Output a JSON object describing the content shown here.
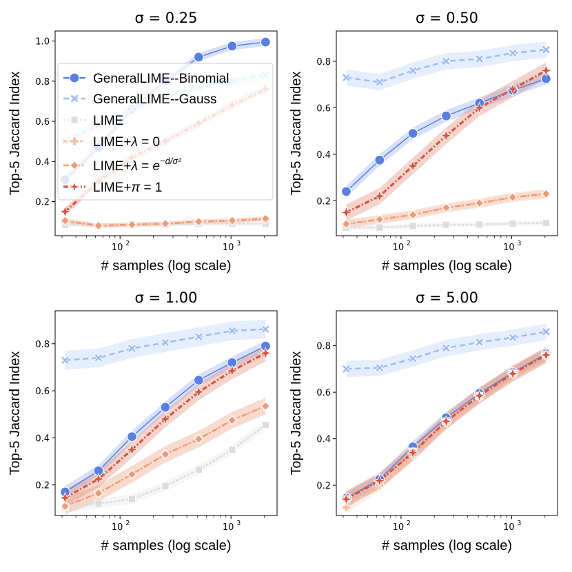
{
  "chart_data": [
    {
      "type": "line",
      "title": "σ = 0.25",
      "xlabel": "# samples (log scale)",
      "ylabel": "Top-5 Jaccard Index",
      "xscale": "log",
      "xlim": [
        26,
        2600
      ],
      "ylim": [
        0.03,
        1.05
      ],
      "yticks": [
        0.2,
        0.4,
        0.6,
        0.8,
        1.0
      ],
      "yticklabels": [
        "0.2",
        "0.4",
        "0.6",
        "0.8",
        "1.0"
      ],
      "xticklabels": [
        "10",
        "2",
        "10",
        "3"
      ],
      "x": [
        32,
        64,
        128,
        256,
        512,
        1024,
        2048
      ],
      "legend": "center-left",
      "series": [
        {
          "name": "GeneralLIME--Binomial",
          "values": [
            0.31,
            0.47,
            0.66,
            0.8,
            0.92,
            0.975,
            0.995
          ],
          "band": 0.02
        },
        {
          "name": "GeneralLIME--Gauss",
          "values": [
            0.5,
            0.58,
            0.66,
            0.72,
            0.77,
            0.8,
            0.83
          ],
          "band": 0.02
        },
        {
          "name": "LIME",
          "values": [
            0.085,
            0.08,
            0.085,
            0.085,
            0.09,
            0.09,
            0.09
          ],
          "band": 0.01
        },
        {
          "name": "LIME+λ = 0",
          "values": [
            0.1,
            0.08,
            0.085,
            0.09,
            0.1,
            0.105,
            0.11
          ],
          "band": 0.01
        },
        {
          "name": "LIME+λ = e^{-d/σ²}",
          "values": [
            0.105,
            0.08,
            0.085,
            0.09,
            0.1,
            0.105,
            0.115
          ],
          "band": 0.012
        },
        {
          "name": "LIME+π = 1",
          "values": [
            0.15,
            0.3,
            0.42,
            0.5,
            0.59,
            0.68,
            0.76
          ],
          "band": 0.02
        }
      ]
    },
    {
      "type": "line",
      "title": "σ = 0.50",
      "xlabel": "# samples (log scale)",
      "ylabel": "Top-5 Jaccard Index",
      "xscale": "log",
      "xlim": [
        26,
        2600
      ],
      "ylim": [
        0.05,
        0.93
      ],
      "yticks": [
        0.2,
        0.4,
        0.6,
        0.8
      ],
      "yticklabels": [
        "0.2",
        "0.4",
        "0.6",
        "0.8"
      ],
      "xticklabels": [
        "10",
        "2",
        "10",
        "3"
      ],
      "x": [
        32,
        64,
        128,
        256,
        512,
        1024,
        2048
      ],
      "series": [
        {
          "name": "GeneralLIME--Binomial",
          "values": [
            0.24,
            0.375,
            0.49,
            0.565,
            0.62,
            0.675,
            0.725
          ],
          "band": 0.025
        },
        {
          "name": "GeneralLIME--Gauss",
          "values": [
            0.73,
            0.71,
            0.76,
            0.8,
            0.81,
            0.835,
            0.85
          ],
          "band": 0.035
        },
        {
          "name": "LIME",
          "values": [
            0.085,
            0.085,
            0.092,
            0.097,
            0.098,
            0.102,
            0.105
          ],
          "band": 0.01
        },
        {
          "name": "LIME+λ = 0",
          "values": [
            0.1,
            0.12,
            0.14,
            0.17,
            0.19,
            0.215,
            0.23
          ],
          "band": 0.015
        },
        {
          "name": "LIME+λ = e^{-d/σ²}",
          "values": [
            0.1,
            0.12,
            0.14,
            0.17,
            0.19,
            0.215,
            0.23
          ],
          "band": 0.02
        },
        {
          "name": "LIME+π = 1",
          "values": [
            0.15,
            0.22,
            0.35,
            0.48,
            0.6,
            0.68,
            0.76
          ],
          "band": 0.035
        }
      ]
    },
    {
      "type": "line",
      "title": "σ = 1.00",
      "xlabel": "# samples (log scale)",
      "ylabel": "Top-5 Jaccard Index",
      "xscale": "log",
      "xlim": [
        26,
        2600
      ],
      "ylim": [
        0.07,
        0.94
      ],
      "yticks": [
        0.2,
        0.4,
        0.6,
        0.8
      ],
      "yticklabels": [
        "0.2",
        "0.4",
        "0.6",
        "0.8"
      ],
      "xticklabels": [
        "10",
        "2",
        "10",
        "3"
      ],
      "x": [
        32,
        64,
        128,
        256,
        512,
        1024,
        2048
      ],
      "series": [
        {
          "name": "GeneralLIME--Binomial",
          "values": [
            0.17,
            0.26,
            0.405,
            0.53,
            0.645,
            0.72,
            0.79
          ],
          "band": 0.025
        },
        {
          "name": "GeneralLIME--Gauss",
          "values": [
            0.73,
            0.74,
            0.78,
            0.805,
            0.83,
            0.855,
            0.862
          ],
          "band": 0.04
        },
        {
          "name": "LIME",
          "values": [
            0.105,
            0.12,
            0.14,
            0.195,
            0.265,
            0.35,
            0.455
          ],
          "band": 0.02
        },
        {
          "name": "LIME+λ = 0",
          "values": [
            0.11,
            0.165,
            0.245,
            0.33,
            0.395,
            0.475,
            0.535
          ],
          "band": 0.035
        },
        {
          "name": "LIME+λ = e^{-d/σ²}",
          "values": [
            0.11,
            0.165,
            0.245,
            0.33,
            0.395,
            0.475,
            0.535
          ],
          "band": 0.035
        },
        {
          "name": "LIME+π = 1",
          "values": [
            0.145,
            0.225,
            0.35,
            0.48,
            0.595,
            0.685,
            0.76
          ],
          "band": 0.035
        }
      ]
    },
    {
      "type": "line",
      "title": "σ = 5.00",
      "xlabel": "# samples (log scale)",
      "ylabel": "Top-5 Jaccard Index",
      "xscale": "log",
      "xlim": [
        26,
        2600
      ],
      "ylim": [
        0.07,
        0.95
      ],
      "yticks": [
        0.2,
        0.4,
        0.6,
        0.8
      ],
      "yticklabels": [
        "0.2",
        "0.4",
        "0.6",
        "0.8"
      ],
      "xticklabels": [
        "10",
        "2",
        "10",
        "3"
      ],
      "x": [
        32,
        64,
        128,
        256,
        512,
        1024,
        2048
      ],
      "series": [
        {
          "name": "GeneralLIME--Binomial",
          "values": [
            0.145,
            0.225,
            0.365,
            0.49,
            0.595,
            0.685,
            0.765
          ],
          "band": 0.025
        },
        {
          "name": "GeneralLIME--Gauss",
          "values": [
            0.7,
            0.705,
            0.745,
            0.79,
            0.815,
            0.835,
            0.86
          ],
          "band": 0.035
        },
        {
          "name": "LIME",
          "values": [
            0.14,
            0.21,
            0.345,
            0.475,
            0.585,
            0.68,
            0.76
          ],
          "band": 0.02
        },
        {
          "name": "LIME+λ = 0",
          "values": [
            0.105,
            0.2,
            0.33,
            0.47,
            0.58,
            0.68,
            0.76
          ],
          "band": 0.025
        },
        {
          "name": "LIME+λ = e^{-d/σ²}",
          "values": [
            0.14,
            0.215,
            0.345,
            0.475,
            0.585,
            0.68,
            0.76
          ],
          "band": 0.03
        },
        {
          "name": "LIME+π = 1",
          "values": [
            0.14,
            0.22,
            0.34,
            0.475,
            0.585,
            0.68,
            0.76
          ],
          "band": 0.035
        }
      ]
    }
  ],
  "styles": [
    {
      "color": "#5b7fe0",
      "band_color": "#8aa7f0",
      "dash": "",
      "marker": "circle"
    },
    {
      "color": "#9dbcf5",
      "band_color": "#b5cdf7",
      "dash": "8,5",
      "marker": "x"
    },
    {
      "color": "#dcdcdc",
      "band_color": "#e4e4e4",
      "dash": "2,4",
      "marker": "square"
    },
    {
      "color": "#f3c1a6",
      "band_color": "#f6d2bf",
      "dash": "5,3",
      "marker": "plus"
    },
    {
      "color": "#ec9a78",
      "band_color": "#f2b79e",
      "dash": "8,3,2,3",
      "marker": "diamond"
    },
    {
      "color": "#d65540",
      "band_color": "#e0806e",
      "dash": "7,3,2,3",
      "marker": "star"
    }
  ]
}
